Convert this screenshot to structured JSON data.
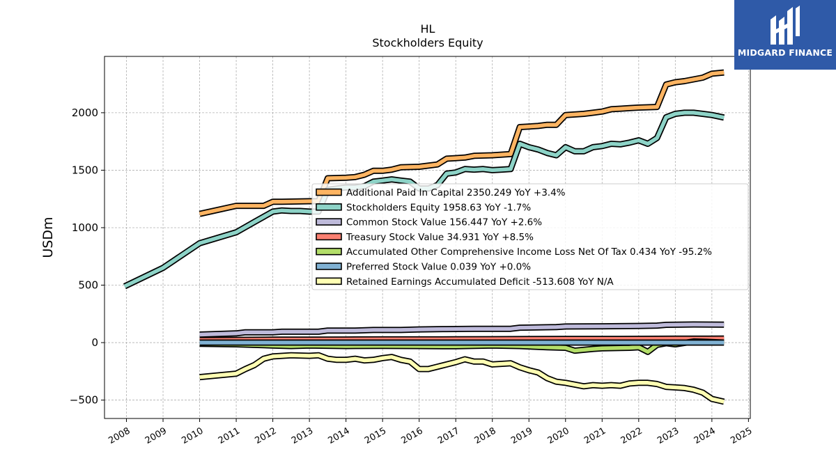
{
  "logo": {
    "brand_text": "MIDGARD FINANCE",
    "background_color": "#2f5aa8"
  },
  "chart_data": {
    "type": "line",
    "title": "HL",
    "subtitle": "Stockholders  Equity",
    "ylabel": "USDm",
    "xlabel": "",
    "xlim": [
      2007.4,
      2025.05
    ],
    "ylim": [
      -660,
      2490
    ],
    "x_ticks": [
      2008,
      2009,
      2010,
      2011,
      2012,
      2013,
      2014,
      2015,
      2016,
      2017,
      2018,
      2019,
      2020,
      2021,
      2022,
      2023,
      2024,
      2025
    ],
    "y_ticks": [
      -500,
      0,
      500,
      1000,
      1500,
      2000
    ],
    "y_tick_labels": [
      "−500",
      "0",
      "500",
      "1000",
      "1500",
      "2000"
    ],
    "grid": true,
    "legend_placement": "center-right",
    "series": [
      {
        "name": "Additional Paid In Capital  2350.249 YoY +3.4%",
        "color": "#fdb462",
        "points": [
          [
            2010.0,
            1120
          ],
          [
            2011.0,
            1190
          ],
          [
            2011.25,
            1190
          ],
          [
            2011.75,
            1190
          ],
          [
            2012.0,
            1225
          ],
          [
            2012.25,
            1225
          ],
          [
            2013.0,
            1230
          ],
          [
            2013.25,
            1230
          ],
          [
            2013.5,
            1430
          ],
          [
            2014.0,
            1435
          ],
          [
            2014.25,
            1440
          ],
          [
            2014.5,
            1460
          ],
          [
            2014.75,
            1495
          ],
          [
            2015.0,
            1495
          ],
          [
            2015.25,
            1505
          ],
          [
            2015.5,
            1525
          ],
          [
            2016.0,
            1530
          ],
          [
            2016.5,
            1550
          ],
          [
            2016.75,
            1600
          ],
          [
            2017.0,
            1605
          ],
          [
            2017.25,
            1610
          ],
          [
            2017.5,
            1625
          ],
          [
            2018.0,
            1630
          ],
          [
            2018.5,
            1640
          ],
          [
            2018.75,
            1875
          ],
          [
            2019.0,
            1880
          ],
          [
            2019.25,
            1885
          ],
          [
            2019.5,
            1895
          ],
          [
            2019.75,
            1895
          ],
          [
            2020.0,
            1980
          ],
          [
            2020.5,
            1990
          ],
          [
            2020.75,
            2000
          ],
          [
            2021.0,
            2010
          ],
          [
            2021.25,
            2030
          ],
          [
            2021.5,
            2035
          ],
          [
            2021.75,
            2040
          ],
          [
            2022.0,
            2045
          ],
          [
            2022.5,
            2050
          ],
          [
            2022.75,
            2245
          ],
          [
            2023.0,
            2265
          ],
          [
            2023.25,
            2275
          ],
          [
            2023.5,
            2290
          ],
          [
            2023.75,
            2305
          ],
          [
            2024.0,
            2340
          ],
          [
            2024.33,
            2350
          ]
        ]
      },
      {
        "name": "Stockholders Equity  1958.63 YoY -1.7%",
        "color": "#8dd3c7",
        "points": [
          [
            2007.95,
            490
          ],
          [
            2009.0,
            650
          ],
          [
            2010.0,
            865
          ],
          [
            2011.0,
            960
          ],
          [
            2011.5,
            1050
          ],
          [
            2012.0,
            1140
          ],
          [
            2012.25,
            1150
          ],
          [
            2012.5,
            1145
          ],
          [
            2012.75,
            1145
          ],
          [
            2013.0,
            1140
          ],
          [
            2013.25,
            1140
          ],
          [
            2013.5,
            1330
          ],
          [
            2013.75,
            1340
          ],
          [
            2014.0,
            1350
          ],
          [
            2014.25,
            1350
          ],
          [
            2014.5,
            1360
          ],
          [
            2014.75,
            1400
          ],
          [
            2015.0,
            1410
          ],
          [
            2015.25,
            1420
          ],
          [
            2015.5,
            1410
          ],
          [
            2015.75,
            1400
          ],
          [
            2016.0,
            1340
          ],
          [
            2016.25,
            1340
          ],
          [
            2016.5,
            1370
          ],
          [
            2016.75,
            1470
          ],
          [
            2017.0,
            1480
          ],
          [
            2017.25,
            1510
          ],
          [
            2017.5,
            1505
          ],
          [
            2017.75,
            1510
          ],
          [
            2018.0,
            1500
          ],
          [
            2018.25,
            1505
          ],
          [
            2018.5,
            1510
          ],
          [
            2018.75,
            1730
          ],
          [
            2019.0,
            1700
          ],
          [
            2019.25,
            1680
          ],
          [
            2019.5,
            1650
          ],
          [
            2019.75,
            1630
          ],
          [
            2020.0,
            1700
          ],
          [
            2020.25,
            1665
          ],
          [
            2020.5,
            1665
          ],
          [
            2020.75,
            1700
          ],
          [
            2021.0,
            1710
          ],
          [
            2021.25,
            1730
          ],
          [
            2021.5,
            1725
          ],
          [
            2021.75,
            1740
          ],
          [
            2022.0,
            1760
          ],
          [
            2022.25,
            1730
          ],
          [
            2022.5,
            1780
          ],
          [
            2022.75,
            1960
          ],
          [
            2023.0,
            1990
          ],
          [
            2023.25,
            2000
          ],
          [
            2023.5,
            2000
          ],
          [
            2023.75,
            1990
          ],
          [
            2024.0,
            1980
          ],
          [
            2024.33,
            1958
          ]
        ]
      },
      {
        "name": "Common Stock Value  156.447 YoY +2.6%",
        "color": "#bebada",
        "points": [
          [
            2010.0,
            70
          ],
          [
            2011.0,
            80
          ],
          [
            2011.25,
            90
          ],
          [
            2012.0,
            90
          ],
          [
            2012.25,
            95
          ],
          [
            2013.25,
            95
          ],
          [
            2013.5,
            105
          ],
          [
            2014.25,
            105
          ],
          [
            2014.75,
            110
          ],
          [
            2015.5,
            110
          ],
          [
            2016.0,
            115
          ],
          [
            2016.75,
            118
          ],
          [
            2017.5,
            120
          ],
          [
            2018.5,
            120
          ],
          [
            2018.75,
            130
          ],
          [
            2019.75,
            135
          ],
          [
            2020.0,
            140
          ],
          [
            2021.0,
            142
          ],
          [
            2022.0,
            145
          ],
          [
            2022.5,
            148
          ],
          [
            2022.75,
            155
          ],
          [
            2023.5,
            158
          ],
          [
            2024.33,
            156
          ]
        ]
      },
      {
        "name": "Treasury Stock Value  34.931 YoY +8.5%",
        "color": "#fb8072",
        "points": [
          [
            2010.0,
            22
          ],
          [
            2011.0,
            24
          ],
          [
            2012.0,
            26
          ],
          [
            2013.0,
            26
          ],
          [
            2014.0,
            27
          ],
          [
            2015.0,
            28
          ],
          [
            2016.0,
            28
          ],
          [
            2017.0,
            29
          ],
          [
            2018.0,
            30
          ],
          [
            2019.0,
            31
          ],
          [
            2020.0,
            32
          ],
          [
            2021.0,
            32
          ],
          [
            2022.0,
            33
          ],
          [
            2023.0,
            34
          ],
          [
            2024.33,
            35
          ]
        ]
      },
      {
        "name": "Accumulated Other Comprehensive Income Loss Net Of Tax  0.434 YoY -95.2%",
        "color": "#b3de69",
        "points": [
          [
            2010.0,
            -10
          ],
          [
            2011.0,
            -15
          ],
          [
            2012.0,
            -25
          ],
          [
            2012.5,
            -30
          ],
          [
            2013.0,
            -25
          ],
          [
            2014.0,
            -30
          ],
          [
            2015.0,
            -28
          ],
          [
            2016.0,
            -30
          ],
          [
            2017.0,
            -32
          ],
          [
            2018.0,
            -25
          ],
          [
            2018.75,
            -30
          ],
          [
            2019.5,
            -40
          ],
          [
            2020.0,
            -45
          ],
          [
            2020.25,
            -70
          ],
          [
            2020.75,
            -55
          ],
          [
            2021.0,
            -50
          ],
          [
            2021.75,
            -45
          ],
          [
            2022.0,
            -40
          ],
          [
            2022.25,
            -80
          ],
          [
            2022.5,
            -20
          ],
          [
            2022.75,
            -5
          ],
          [
            2023.0,
            -15
          ],
          [
            2023.5,
            10
          ],
          [
            2024.0,
            5
          ],
          [
            2024.33,
            0.4
          ]
        ]
      },
      {
        "name": "Preferred Stock Value  0.039 YoY +0.0%",
        "color": "#80b1d3",
        "points": [
          [
            2010.0,
            0.04
          ],
          [
            2024.33,
            0.04
          ]
        ]
      },
      {
        "name": "Retained Earnings Accumulated Deficit  -513.608 YoY N/A",
        "color": "#ffffb3",
        "points": [
          [
            2010.0,
            -300
          ],
          [
            2011.0,
            -270
          ],
          [
            2011.25,
            -230
          ],
          [
            2011.5,
            -195
          ],
          [
            2011.75,
            -140
          ],
          [
            2012.0,
            -120
          ],
          [
            2012.5,
            -110
          ],
          [
            2013.0,
            -115
          ],
          [
            2013.25,
            -110
          ],
          [
            2013.5,
            -140
          ],
          [
            2013.75,
            -150
          ],
          [
            2014.0,
            -150
          ],
          [
            2014.25,
            -140
          ],
          [
            2014.5,
            -155
          ],
          [
            2014.75,
            -150
          ],
          [
            2015.0,
            -135
          ],
          [
            2015.25,
            -125
          ],
          [
            2015.5,
            -150
          ],
          [
            2015.75,
            -165
          ],
          [
            2016.0,
            -230
          ],
          [
            2016.25,
            -230
          ],
          [
            2016.5,
            -210
          ],
          [
            2016.75,
            -190
          ],
          [
            2017.0,
            -170
          ],
          [
            2017.25,
            -145
          ],
          [
            2017.5,
            -165
          ],
          [
            2017.75,
            -165
          ],
          [
            2018.0,
            -190
          ],
          [
            2018.5,
            -180
          ],
          [
            2018.75,
            -215
          ],
          [
            2019.0,
            -240
          ],
          [
            2019.25,
            -260
          ],
          [
            2019.5,
            -310
          ],
          [
            2019.75,
            -340
          ],
          [
            2020.0,
            -350
          ],
          [
            2020.5,
            -380
          ],
          [
            2020.75,
            -370
          ],
          [
            2021.0,
            -375
          ],
          [
            2021.25,
            -370
          ],
          [
            2021.5,
            -375
          ],
          [
            2021.75,
            -355
          ],
          [
            2022.0,
            -350
          ],
          [
            2022.25,
            -350
          ],
          [
            2022.5,
            -360
          ],
          [
            2022.75,
            -385
          ],
          [
            2023.0,
            -390
          ],
          [
            2023.25,
            -395
          ],
          [
            2023.5,
            -410
          ],
          [
            2023.75,
            -435
          ],
          [
            2024.0,
            -490
          ],
          [
            2024.33,
            -514
          ]
        ]
      }
    ]
  }
}
